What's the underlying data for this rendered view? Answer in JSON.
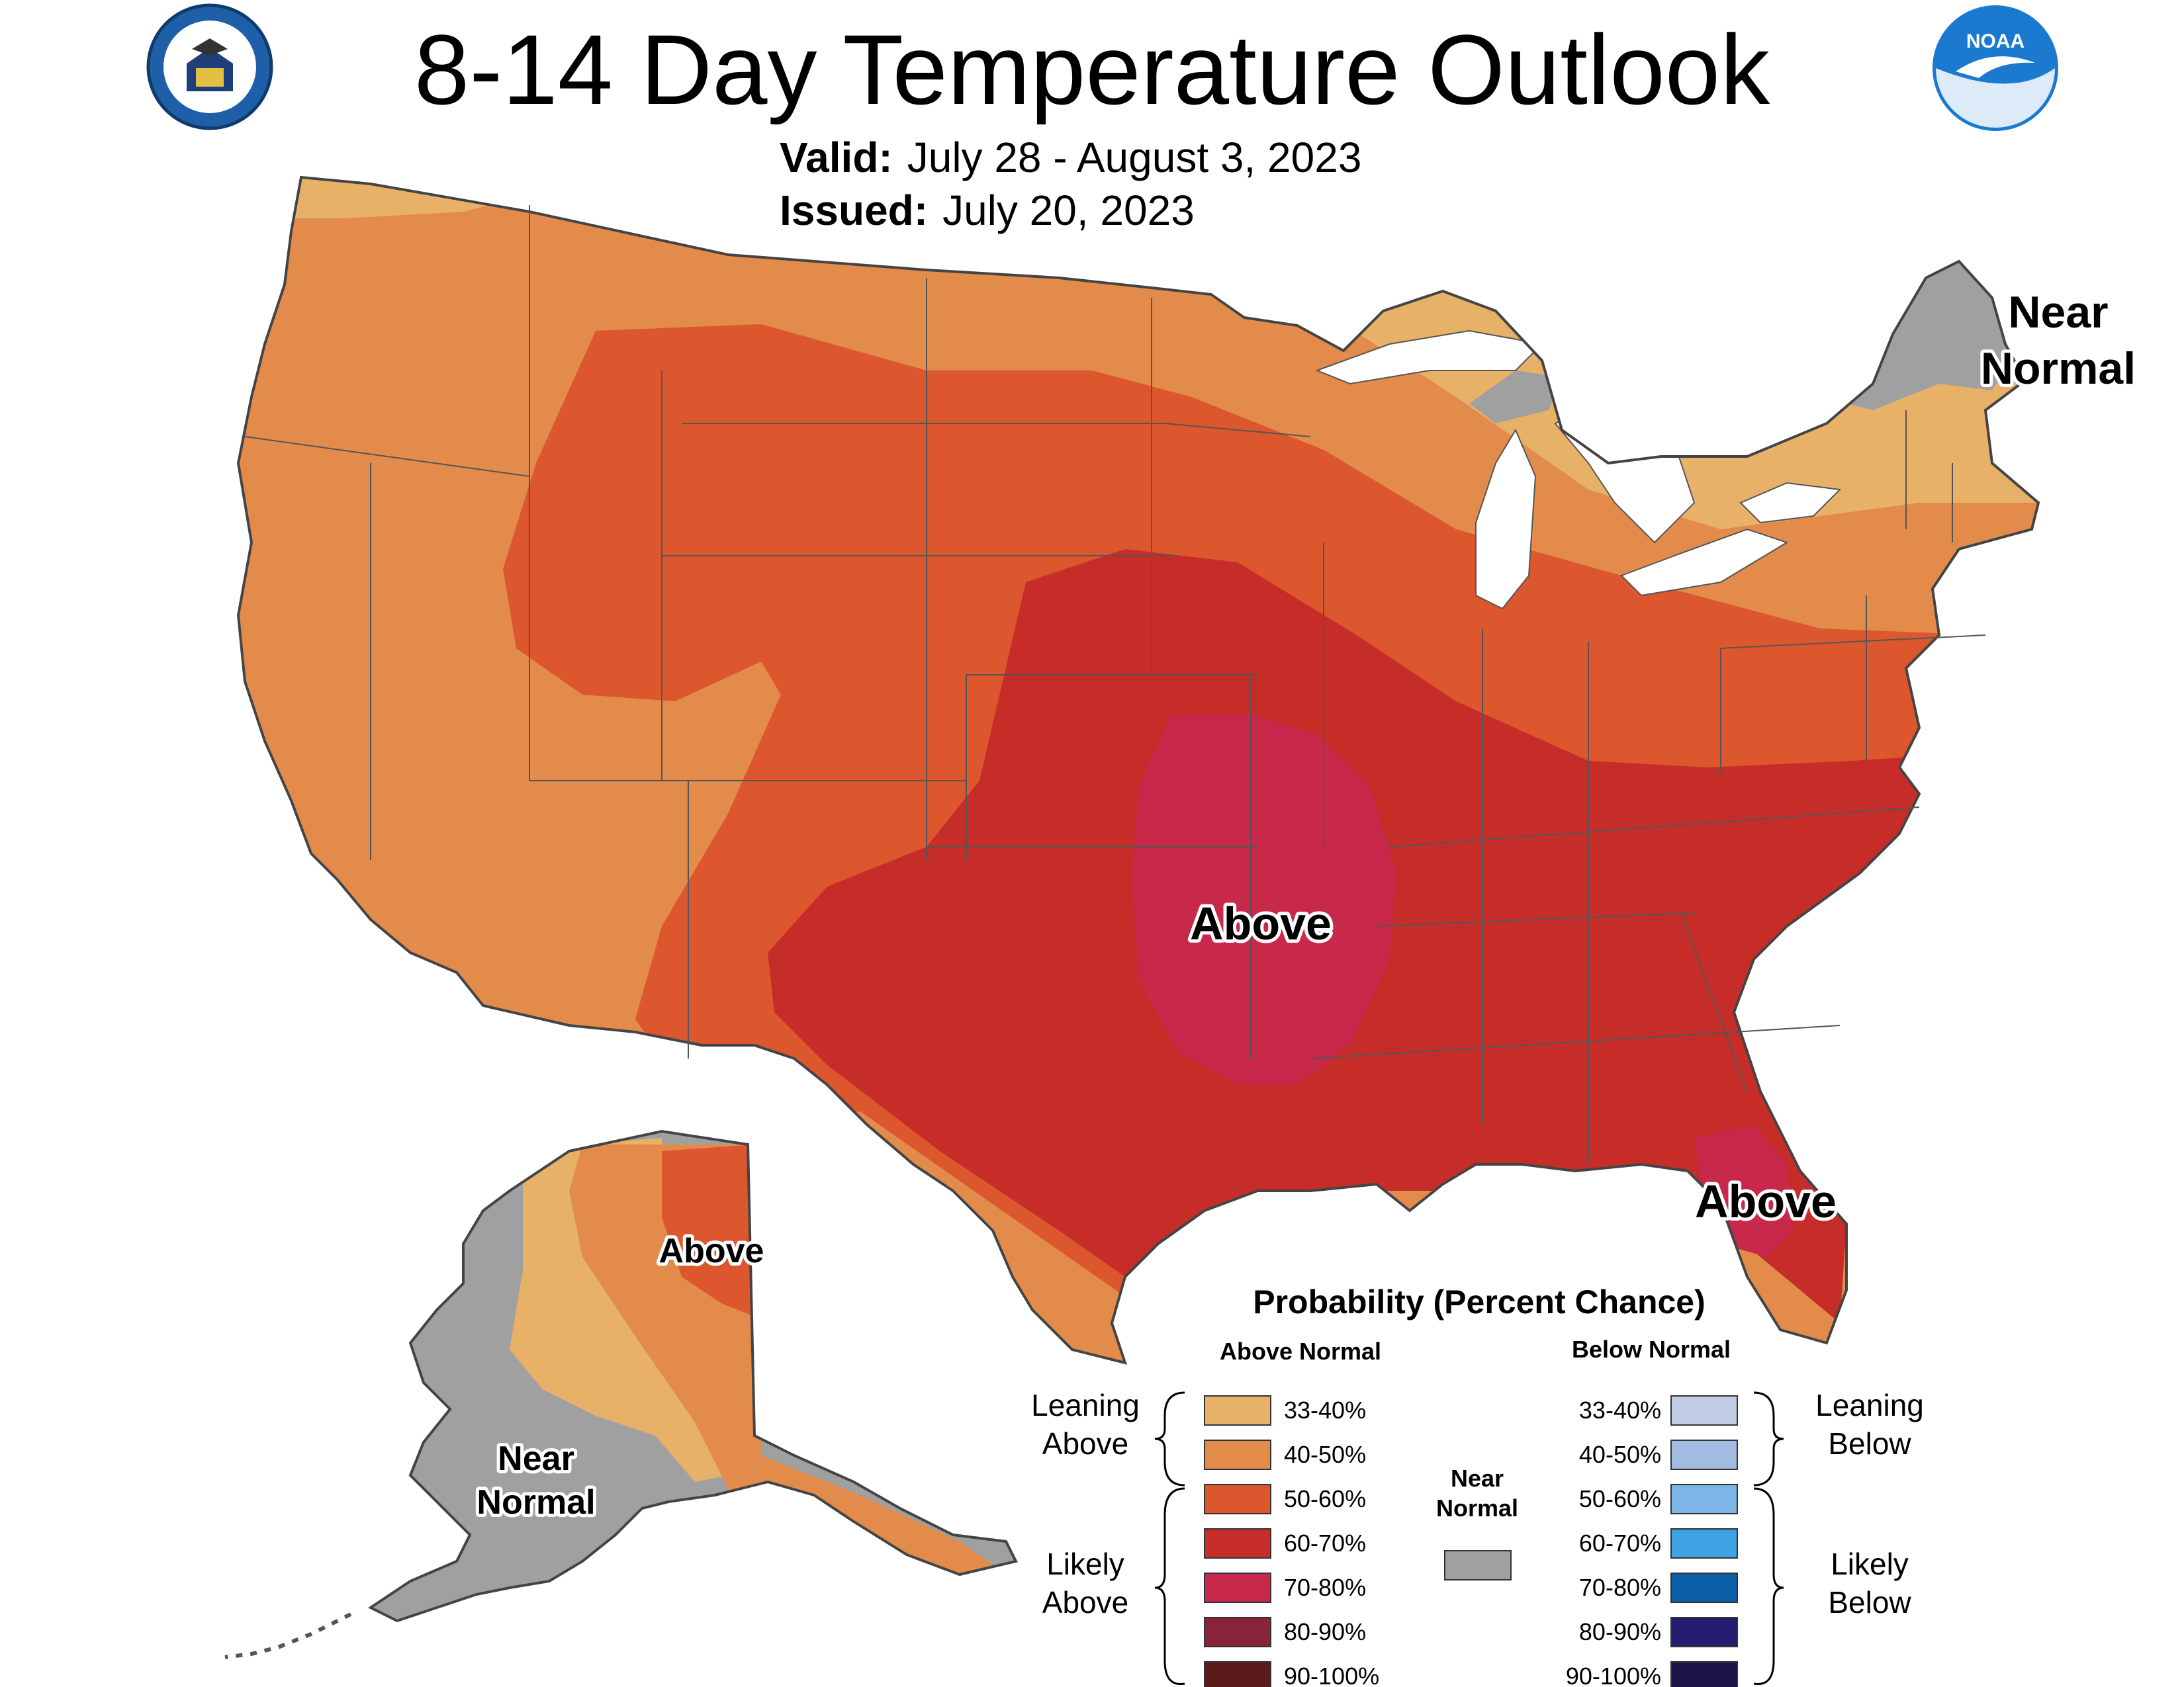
{
  "title": "8-14 Day Temperature Outlook",
  "valid": {
    "label": "Valid:",
    "value": "July 28 - August 3, 2023"
  },
  "issued": {
    "label": "Issued:",
    "value": "July 20, 2023"
  },
  "map_labels": {
    "ne_near_normal_1": "Near",
    "ne_near_normal_2": "Normal",
    "center_above": "Above",
    "florida_above": "Above",
    "alaska_above": "Above",
    "alaska_near_normal_1": "Near",
    "alaska_near_normal_2": "Normal"
  },
  "legend": {
    "title": "Probability (Percent Chance)",
    "above_header": "Above Normal",
    "below_header": "Below Normal",
    "near_label_1": "Near",
    "near_label_2": "Normal",
    "leaning_above_1": "Leaning",
    "leaning_above_2": "Above",
    "likely_above_1": "Likely",
    "likely_above_2": "Above",
    "leaning_below_1": "Leaning",
    "leaning_below_2": "Below",
    "likely_below_1": "Likely",
    "likely_below_2": "Below",
    "above": [
      {
        "range": "33-40%",
        "color": "#E7B168"
      },
      {
        "range": "40-50%",
        "color": "#E38B4B"
      },
      {
        "range": "50-60%",
        "color": "#DC562E"
      },
      {
        "range": "60-70%",
        "color": "#C72D28"
      },
      {
        "range": "70-80%",
        "color": "#C8284A"
      },
      {
        "range": "80-90%",
        "color": "#88233A"
      },
      {
        "range": "90-100%",
        "color": "#5D1A1C"
      }
    ],
    "below": [
      {
        "range": "33-40%",
        "color": "#C3CDE6"
      },
      {
        "range": "40-50%",
        "color": "#A2BBE0"
      },
      {
        "range": "50-60%",
        "color": "#7DB6E6"
      },
      {
        "range": "60-70%",
        "color": "#3DA3E3"
      },
      {
        "range": "70-80%",
        "color": "#0B5FA8"
      },
      {
        "range": "80-90%",
        "color": "#231C6F"
      },
      {
        "range": "90-100%",
        "color": "#1B1449"
      }
    ],
    "near_color": "#A0A0A0"
  },
  "logos": {
    "left": "department-of-commerce-seal",
    "right": "noaa-logo"
  }
}
